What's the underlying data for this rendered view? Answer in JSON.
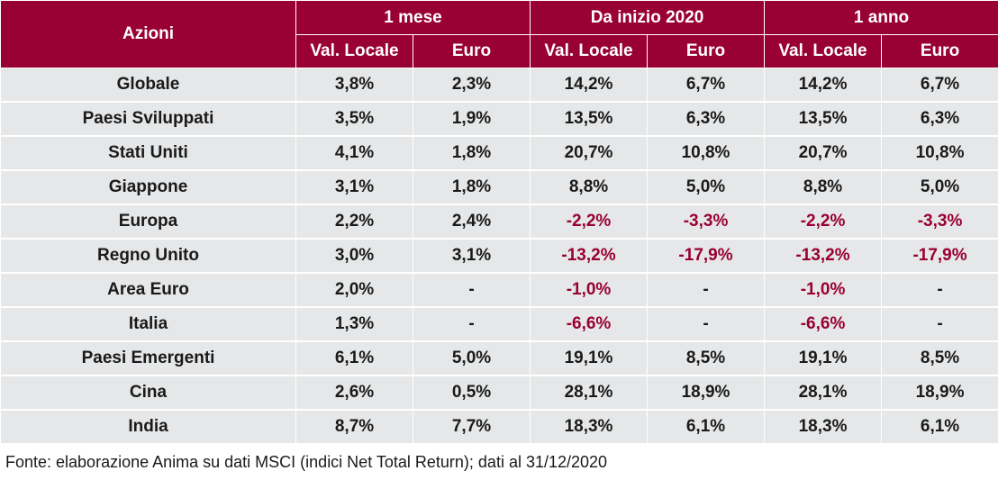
{
  "table": {
    "header": {
      "label_col": "Azioni",
      "groups": [
        "1 mese",
        "Da inizio 2020",
        "1 anno"
      ],
      "sub": [
        "Val. Locale",
        "Euro",
        "Val. Locale",
        "Euro",
        "Val. Locale",
        "Euro"
      ]
    },
    "rows": [
      {
        "label": "Globale",
        "values": [
          "3,8%",
          "2,3%",
          "14,2%",
          "6,7%",
          "14,2%",
          "6,7%"
        ]
      },
      {
        "label": "Paesi Sviluppati",
        "values": [
          "3,5%",
          "1,9%",
          "13,5%",
          "6,3%",
          "13,5%",
          "6,3%"
        ]
      },
      {
        "label": "Stati Uniti",
        "values": [
          "4,1%",
          "1,8%",
          "20,7%",
          "10,8%",
          "20,7%",
          "10,8%"
        ]
      },
      {
        "label": "Giappone",
        "values": [
          "3,1%",
          "1,8%",
          "8,8%",
          "5,0%",
          "8,8%",
          "5,0%"
        ]
      },
      {
        "label": "Europa",
        "values": [
          "2,2%",
          "2,4%",
          "-2,2%",
          "-3,3%",
          "-2,2%",
          "-3,3%"
        ]
      },
      {
        "label": "Regno Unito",
        "values": [
          "3,0%",
          "3,1%",
          "-13,2%",
          "-17,9%",
          "-13,2%",
          "-17,9%"
        ]
      },
      {
        "label": "Area Euro",
        "values": [
          "2,0%",
          "-",
          "-1,0%",
          "-",
          "-1,0%",
          "-"
        ]
      },
      {
        "label": "Italia",
        "values": [
          "1,3%",
          "-",
          "-6,6%",
          "-",
          "-6,6%",
          "-"
        ]
      },
      {
        "label": "Paesi Emergenti",
        "values": [
          "6,1%",
          "5,0%",
          "19,1%",
          "8,5%",
          "19,1%",
          "8,5%"
        ]
      },
      {
        "label": "Cina",
        "values": [
          "2,6%",
          "0,5%",
          "28,1%",
          "18,9%",
          "28,1%",
          "18,9%"
        ]
      },
      {
        "label": "India",
        "values": [
          "8,7%",
          "7,7%",
          "18,3%",
          "6,1%",
          "18,3%",
          "6,1%"
        ]
      }
    ]
  },
  "source": "Fonte: elaborazione Anima su dati MSCI (indici Net Total Return); dati al 31/12/2020",
  "colors": {
    "header_bg": "#990033",
    "row_bg": "#e6e7e8",
    "negative_text": "#990033",
    "text": "#1a1a1a"
  }
}
